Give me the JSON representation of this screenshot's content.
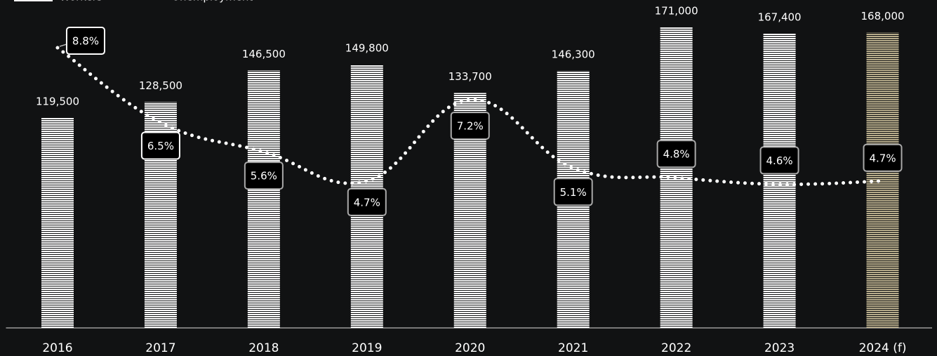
{
  "chart_data": {
    "type": "bar",
    "categories": [
      "2016",
      "2017",
      "2018",
      "2019",
      "2020",
      "2021",
      "2022",
      "2023",
      "2024 (f)"
    ],
    "series": [
      {
        "name": "Workers",
        "type": "bar",
        "color": "#ffffff",
        "colors": [
          "#ffffff",
          "#ffffff",
          "#ffffff",
          "#ffffff",
          "#ffffff",
          "#ffffff",
          "#ffffff",
          "#ffffff",
          "#b8ad8c"
        ],
        "values": [
          119500,
          128500,
          146500,
          149800,
          133700,
          146300,
          171000,
          167400,
          168000
        ],
        "value_labels": [
          "119,500",
          "128,500",
          "146,500",
          "149,800",
          "133,700",
          "146,300",
          "171,000",
          "167,400",
          "168,000"
        ]
      },
      {
        "name": "Unemployment",
        "type": "line",
        "axis": "y2",
        "color": "#ffffff",
        "values": [
          8.8,
          6.5,
          5.6,
          4.7,
          7.2,
          5.1,
          4.8,
          4.6,
          4.7
        ],
        "value_labels": [
          "8.8%",
          "6.5%",
          "5.6%",
          "4.7%",
          "7.2%",
          "5.1%",
          "4.8%",
          "4.6%",
          "4.7%"
        ]
      }
    ],
    "ylim": [
      0,
      186600
    ],
    "y2lim": [
      0.18,
      10.27
    ]
  }
}
